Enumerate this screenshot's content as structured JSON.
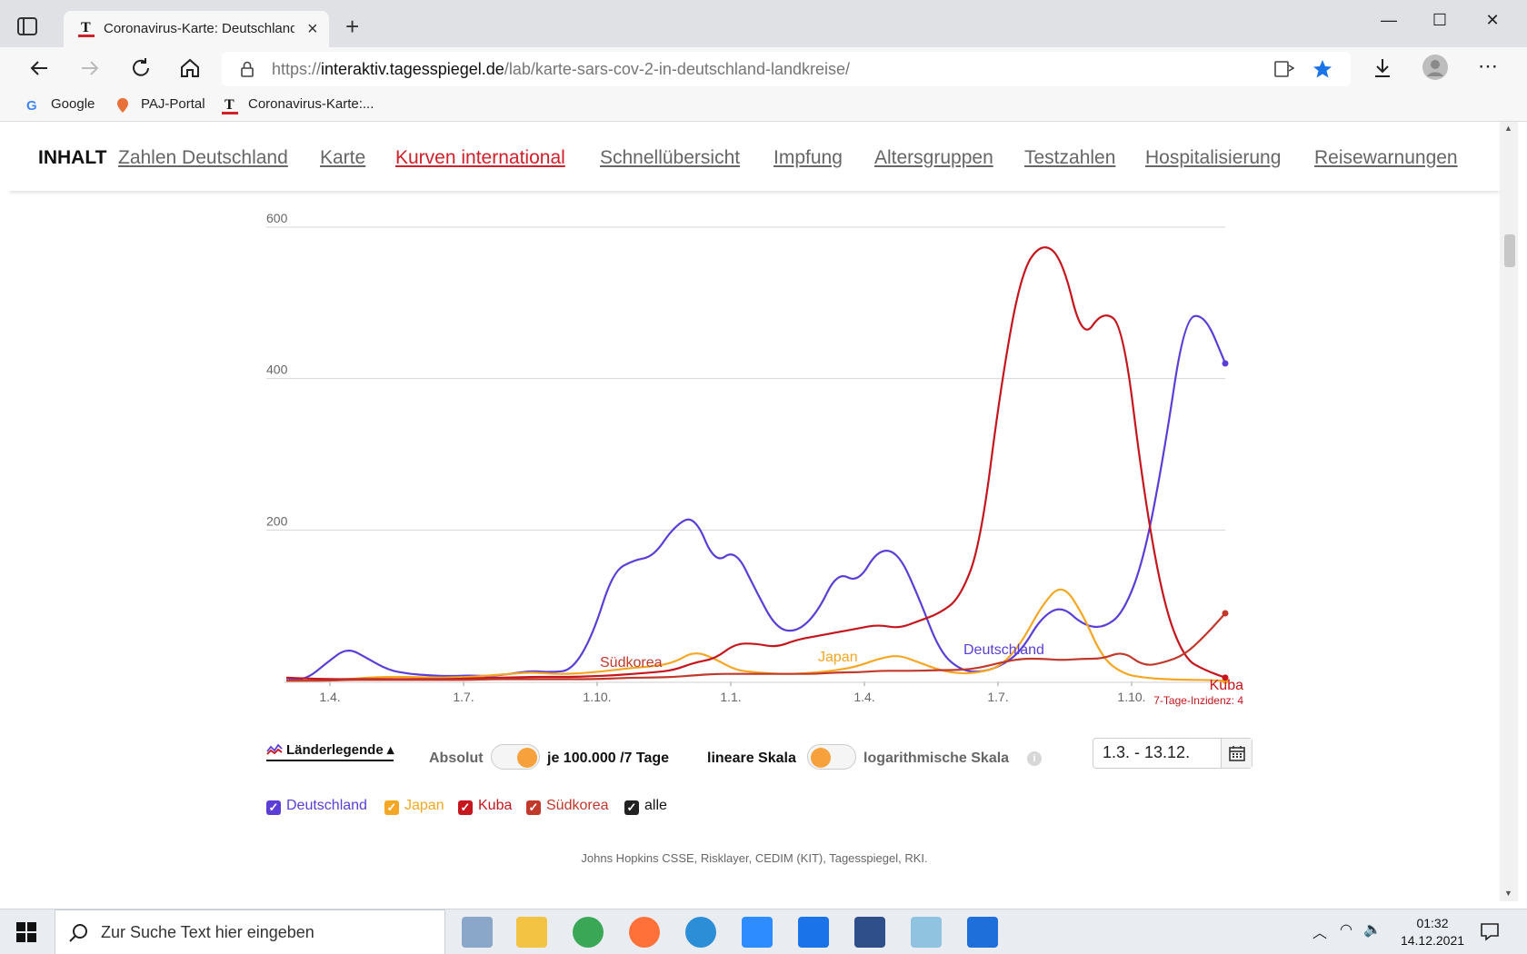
{
  "browser": {
    "tab_title": "Coronavirus-Karte: Deutschland",
    "url_prefix": "https://",
    "url_domain": "interaktiv.tagesspiegel.de",
    "url_path": "/lab/karte-sars-cov-2-in-deutschland-landkreise/",
    "bookmarks": [
      "Google",
      "PAJ-Portal",
      "Coronavirus-Karte:..."
    ]
  },
  "nav": {
    "heading": "INHALT",
    "links": [
      "Zahlen Deutschland",
      "Karte",
      "Kurven international",
      "Schnellübersicht",
      "Impfung",
      "Altersgruppen",
      "Testzahlen",
      "Hospitalisierung",
      "Reisewarnungen"
    ],
    "active_index": 2
  },
  "chart_data": {
    "type": "line",
    "ylim": [
      0,
      600
    ],
    "y_ticks": [
      "600",
      "400",
      "200"
    ],
    "x_ticks": [
      "1.4.",
      "1.7.",
      "1.10.",
      "1.1.",
      "1.4.",
      "1.7.",
      "1.10."
    ],
    "series": [
      {
        "name": "Deutschland",
        "color": "#5b3ed6",
        "values": [
          2,
          3,
          25,
          45,
          30,
          15,
          10,
          8,
          7,
          8,
          7,
          10,
          14,
          12,
          15,
          60,
          145,
          160,
          165,
          205,
          220,
          155,
          175,
          120,
          70,
          65,
          90,
          145,
          130,
          175,
          170,
          110,
          40,
          15,
          12,
          20,
          40,
          85,
          100,
          75,
          70,
          90,
          160,
          300,
          480,
          485,
          420
        ]
      },
      {
        "name": "Japan",
        "color": "#f5a623",
        "values": [
          1,
          1,
          2,
          3,
          5,
          6,
          6,
          5,
          5,
          6,
          8,
          10,
          12,
          10,
          10,
          12,
          15,
          18,
          20,
          25,
          40,
          30,
          15,
          12,
          10,
          10,
          12,
          15,
          20,
          30,
          35,
          25,
          15,
          10,
          12,
          20,
          50,
          100,
          130,
          90,
          30,
          10,
          5,
          3,
          2,
          2,
          1
        ]
      },
      {
        "name": "Kuba",
        "color": "#c4161c",
        "values": [
          5,
          4,
          3,
          3,
          3,
          3,
          3,
          3,
          3,
          4,
          5,
          5,
          6,
          6,
          6,
          7,
          8,
          10,
          12,
          15,
          25,
          30,
          50,
          50,
          45,
          55,
          60,
          65,
          70,
          75,
          70,
          80,
          90,
          110,
          180,
          390,
          540,
          580,
          560,
          450,
          490,
          470,
          250,
          100,
          30,
          15,
          5
        ]
      },
      {
        "name": "Südkorea",
        "color": "#c0392b",
        "values": [
          1,
          1,
          1,
          2,
          2,
          2,
          2,
          2,
          2,
          2,
          3,
          3,
          3,
          3,
          3,
          3,
          4,
          5,
          5,
          6,
          8,
          10,
          10,
          10,
          10,
          10,
          10,
          12,
          12,
          14,
          14,
          14,
          15,
          15,
          18,
          25,
          30,
          30,
          28,
          30,
          30,
          40,
          20,
          25,
          35,
          60,
          90
        ]
      }
    ],
    "inline_labels": [
      "Südkorea",
      "Japan",
      "Deutschland",
      "Kuba"
    ],
    "incidence_note": "7-Tage-Inzidenz: 4"
  },
  "controls": {
    "legend_toggle": "Länderlegende",
    "absolut": "Absolut",
    "per100k": "je 100.000 /7 Tage",
    "linear": "lineare Skala",
    "log": "logarithmische Skala",
    "date_range": "1.3. - 13.12.",
    "checkboxes": [
      {
        "label": "Deutschland",
        "color": "#5b3ed6"
      },
      {
        "label": "Japan",
        "color": "#f5a623"
      },
      {
        "label": "Kuba",
        "color": "#c4161c"
      },
      {
        "label": "Südkorea",
        "color": "#c0392b"
      },
      {
        "label": "alle",
        "color": "#222222"
      }
    ]
  },
  "source": "Johns Hopkins CSSE, Risklayer, CEDIM (KIT), Tagesspiegel, RKI.",
  "taskbar": {
    "search_placeholder": "Zur Suche Text hier eingeben",
    "time": "01:32",
    "date": "14.12.2021"
  }
}
